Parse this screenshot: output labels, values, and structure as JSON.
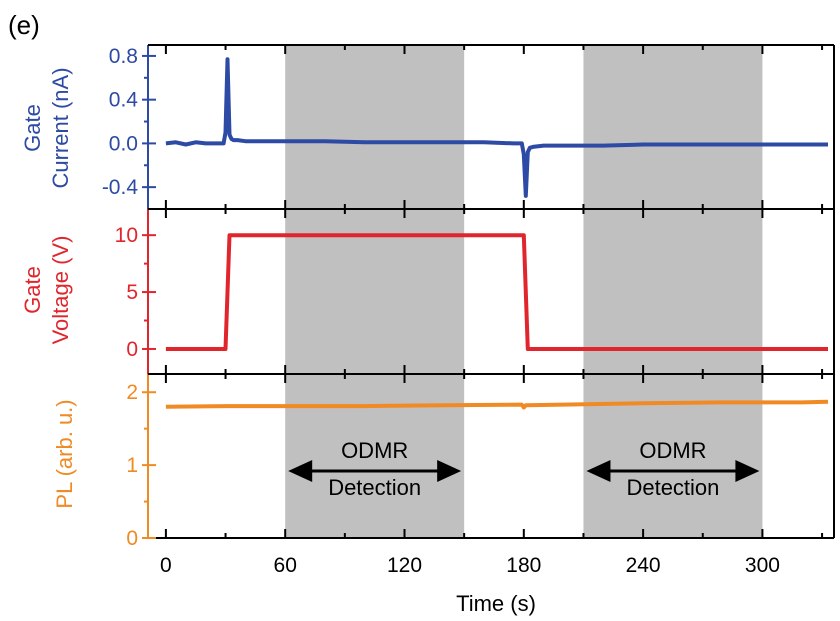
{
  "panel_label": "(e)",
  "chart_data": [
    {
      "type": "line",
      "panel": "top",
      "ylabel_line1": "Gate",
      "ylabel_line2": "Current (nA)",
      "color": "#2d4aa5",
      "ylim": [
        -0.6,
        0.9
      ],
      "yticks": [
        {
          "value": 0.8,
          "label": "0.8"
        },
        {
          "value": 0.4,
          "label": "0.4"
        },
        {
          "value": 0.0,
          "label": "0.0"
        },
        {
          "value": -0.4,
          "label": "-0.4"
        }
      ],
      "series": [
        {
          "x": [
            0,
            5,
            10,
            15,
            20,
            25,
            29,
            30,
            31,
            32,
            33,
            34,
            36,
            40,
            50,
            60,
            80,
            100,
            120,
            140,
            160,
            175,
            179,
            180,
            181,
            182,
            183,
            185,
            190,
            200,
            220,
            240,
            260,
            280,
            300,
            320,
            333
          ],
          "y": [
            0.0,
            0.01,
            -0.01,
            0.01,
            0.0,
            0.0,
            0.0,
            0.1,
            0.77,
            0.08,
            0.04,
            0.03,
            0.03,
            0.02,
            0.02,
            0.02,
            0.02,
            0.01,
            0.01,
            0.01,
            0.01,
            0.0,
            0.0,
            -0.1,
            -0.48,
            -0.08,
            -0.04,
            -0.03,
            -0.02,
            -0.02,
            -0.02,
            -0.01,
            -0.01,
            -0.01,
            -0.01,
            -0.01,
            -0.01
          ]
        }
      ]
    },
    {
      "type": "line",
      "panel": "middle",
      "ylabel_line1": "Gate",
      "ylabel_line2": "Voltage (V)",
      "color": "#e0262c",
      "ylim": [
        -2.2,
        12.3
      ],
      "yticks": [
        {
          "value": 10,
          "label": "10"
        },
        {
          "value": 5,
          "label": "5"
        },
        {
          "value": 0,
          "label": "0"
        }
      ],
      "series": [
        {
          "x": [
            0,
            30,
            32,
            180,
            182,
            333
          ],
          "y": [
            0,
            0,
            10,
            10,
            0,
            0
          ]
        }
      ]
    },
    {
      "type": "line",
      "panel": "bottom",
      "ylabel": "PL (arb. u.)",
      "color": "#f08a24",
      "ylim": [
        0,
        2.25
      ],
      "yticks": [
        {
          "value": 2,
          "label": "2"
        },
        {
          "value": 1,
          "label": "1"
        },
        {
          "value": 0,
          "label": "0"
        }
      ],
      "series": [
        {
          "x": [
            0,
            30,
            60,
            100,
            140,
            179,
            180,
            181,
            200,
            240,
            280,
            320,
            333
          ],
          "y": [
            1.8,
            1.81,
            1.81,
            1.81,
            1.82,
            1.83,
            1.79,
            1.82,
            1.83,
            1.85,
            1.86,
            1.86,
            1.87
          ]
        }
      ],
      "annotations": [
        {
          "line1": "ODMR",
          "line2": "Detection",
          "x_start": 60,
          "x_end": 150
        },
        {
          "line1": "ODMR",
          "line2": "Detection",
          "x_start": 210,
          "x_end": 300
        }
      ]
    }
  ],
  "shared_x": {
    "xlabel": "Time (s)",
    "xlim": [
      -9,
      336
    ],
    "xticks": [
      {
        "value": 0,
        "label": "0"
      },
      {
        "value": 60,
        "label": "60"
      },
      {
        "value": 120,
        "label": "120"
      },
      {
        "value": 180,
        "label": "180"
      },
      {
        "value": 240,
        "label": "240"
      },
      {
        "value": 300,
        "label": "300"
      }
    ],
    "shaded_regions": [
      [
        60,
        150
      ],
      [
        210,
        300
      ]
    ],
    "shade_color": "#c0c0c0"
  }
}
